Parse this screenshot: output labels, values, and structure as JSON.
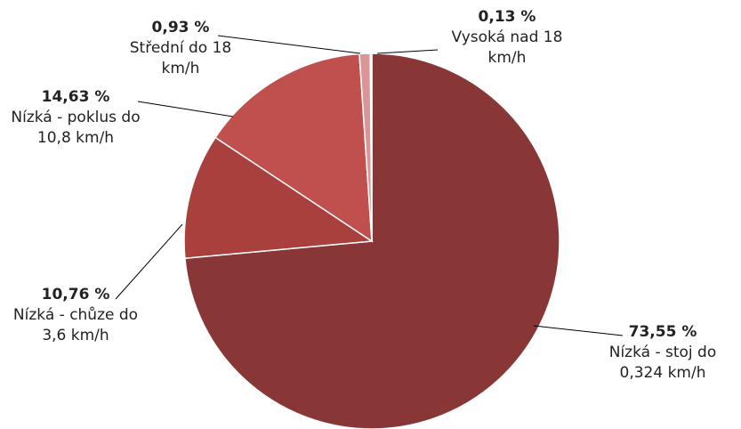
{
  "chart_data": {
    "type": "pie",
    "categories": [
      "Nízká - stoj do 0,324 km/h",
      "Nízká - chůze do 3,6 km/h",
      "Nízká - poklus do 10,8 km/h",
      "Střední do 18 km/h",
      "Vysoká nad 18 km/h"
    ],
    "values": [
      73.55,
      10.76,
      14.63,
      0.93,
      0.13
    ],
    "value_labels": [
      "73,55 %",
      "10,76 %",
      "14,63 %",
      "0,93 %",
      "0,13 %"
    ],
    "colors": [
      "#893636",
      "#a9403e",
      "#c0504d",
      "#d99694",
      "#e6b9b8"
    ]
  }
}
